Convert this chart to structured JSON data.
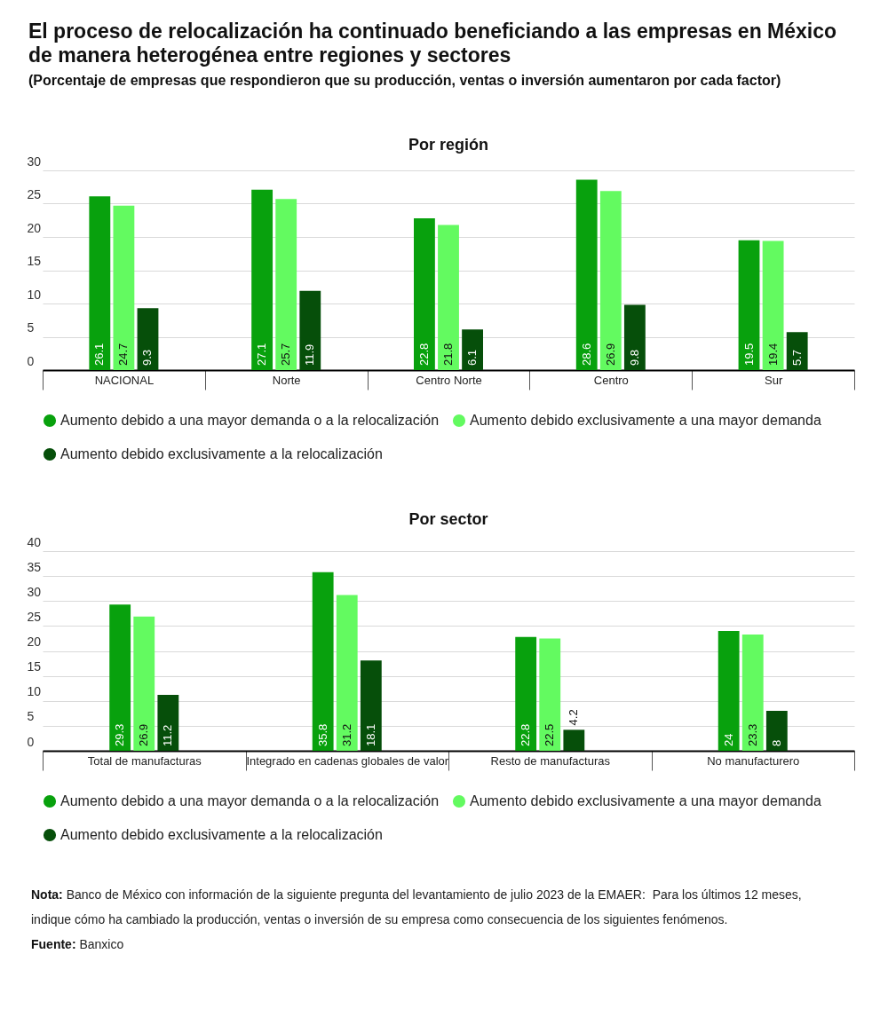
{
  "chart_data": [
    {
      "type": "other",
      "title": "El proceso de relocalización ha continuado beneficiando a las empresas en México de manera heterogénea entre regiones y sectores",
      "subtitle": "(Porcentaje de empresas que respondieron que su producción, ventas o inversión aumentaron por cada factor)"
    },
    {
      "type": "bar",
      "title": "Por región",
      "categories": [
        "NACIONAL",
        "Norte",
        "Centro Norte",
        "Centro",
        "Sur"
      ],
      "series": [
        {
          "name": "Aumento debido a una mayor demanda o a la relocalización",
          "color": "#08a10d",
          "values": [
            26.1,
            27.1,
            22.8,
            28.6,
            19.5
          ]
        },
        {
          "name": "Aumento debido exclusivamente a una mayor demanda",
          "color": "#63fa60",
          "values": [
            24.7,
            25.7,
            21.8,
            26.9,
            19.4
          ]
        },
        {
          "name": "Aumento debido exclusivamente a la relocalización",
          "color": "#064f0a",
          "values": [
            9.3,
            11.9,
            6.1,
            9.8,
            5.7
          ]
        }
      ],
      "ylim": [
        0,
        30
      ],
      "yticks": [
        0,
        5,
        10,
        15,
        20,
        25,
        30
      ],
      "grid": "y",
      "legend": "bottom",
      "data_labels": true
    },
    {
      "type": "bar",
      "title": "Por sector",
      "categories": [
        "Total de manufacturas",
        "Integrado en cadenas globales de valor",
        "Resto de manufacturas",
        "No manufacturero"
      ],
      "series": [
        {
          "name": "Aumento debido a una mayor demanda o a la relocalización",
          "color": "#08a10d",
          "values": [
            29.3,
            35.8,
            22.8,
            24
          ]
        },
        {
          "name": "Aumento debido exclusivamente a una mayor demanda",
          "color": "#63fa60",
          "values": [
            26.9,
            31.2,
            22.5,
            23.3
          ]
        },
        {
          "name": "Aumento debido exclusivamente a la relocalización",
          "color": "#064f0a",
          "values": [
            11.2,
            18.1,
            4.2,
            8
          ]
        }
      ],
      "ylim": [
        0,
        40
      ],
      "yticks": [
        0,
        5,
        10,
        15,
        20,
        25,
        30,
        35,
        40
      ],
      "grid": "y",
      "legend": "bottom",
      "data_labels": true,
      "annotations": [
        "Nota: Banco de México con información de la siguiente pregunta del levantamiento de julio 2023 de la EMAER:  Para los últimos 12 meses, indique cómo ha cambiado la producción, ventas o inversión de su empresa como consecuencia de los siguientes fenómenos.",
        "Fuente: Banxico"
      ]
    }
  ]
}
